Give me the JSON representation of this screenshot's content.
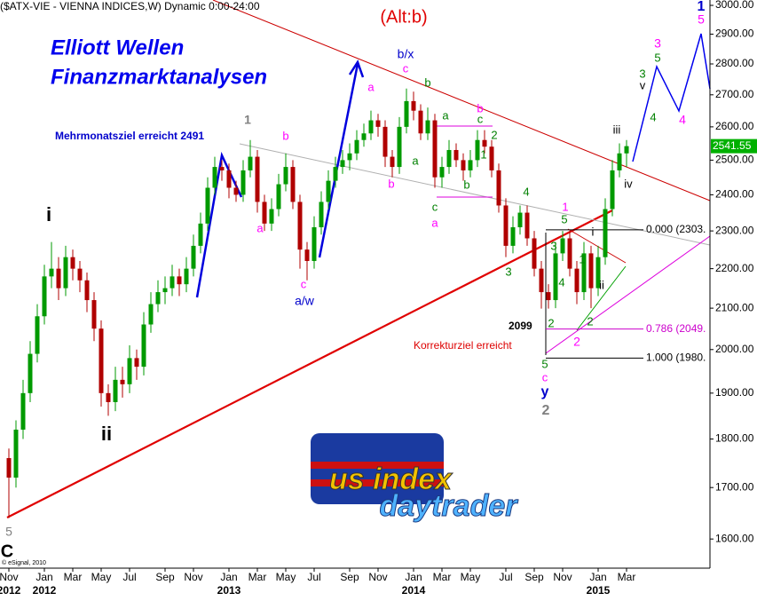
{
  "chart_data": {
    "type": "candlestick",
    "title": "($ATX-VIE - VIENNA INDICES,W) Dynamic 0:00-24:00",
    "subtitle": "(Alt:b)",
    "brand": [
      "Elliott Wellen",
      "Finanzmarktanalysen"
    ],
    "copyright": "© eSignal, 2010",
    "logo": [
      "us index",
      "daytrader"
    ],
    "log_scale": true,
    "ylim": [
      1546,
      3019
    ],
    "yticks": [
      {
        "value": 1600,
        "label": "1600.00"
      },
      {
        "value": 1700,
        "label": "1700.00"
      },
      {
        "value": 1800,
        "label": "1800.00"
      },
      {
        "value": 1900,
        "label": "1900.00"
      },
      {
        "value": 2000,
        "label": "2000.00"
      },
      {
        "value": 2100,
        "label": "2100.00"
      },
      {
        "value": 2200,
        "label": "2200.00"
      },
      {
        "value": 2300,
        "label": "2300.00"
      },
      {
        "value": 2400,
        "label": "2400.00"
      },
      {
        "value": 2500,
        "label": "2500.00"
      },
      {
        "value": 2600,
        "label": "2600.00"
      },
      {
        "value": 2700,
        "label": "2700.00"
      },
      {
        "value": 2800,
        "label": "2800.00"
      },
      {
        "value": 2900,
        "label": "2900.00"
      },
      {
        "value": 3000,
        "label": "3000.00"
      }
    ],
    "up_color": "#009a00",
    "down_color": "#b00000",
    "last_color": "#00b000",
    "categories": [
      "Nov\n2012",
      null,
      null,
      null,
      null,
      "Jan\n2012",
      null,
      null,
      null,
      "Mar",
      null,
      null,
      null,
      "May",
      null,
      null,
      null,
      "Jul",
      null,
      null,
      null,
      null,
      "Sep",
      null,
      null,
      null,
      "Nov",
      null,
      null,
      null,
      null,
      "Jan\n2013",
      null,
      null,
      null,
      "Mar",
      null,
      null,
      null,
      "May",
      null,
      null,
      null,
      "Jul",
      null,
      null,
      null,
      null,
      "Sep",
      null,
      null,
      null,
      "Nov",
      null,
      null,
      null,
      null,
      "Jan\n2014",
      null,
      null,
      null,
      "Mar",
      null,
      null,
      null,
      "May",
      null,
      null,
      null,
      null,
      "Jul",
      null,
      null,
      null,
      "Sep",
      null,
      null,
      null,
      "Nov",
      null,
      null,
      null,
      null,
      "Jan\n2015",
      null,
      null,
      null,
      "Mar"
    ],
    "series": [
      {
        "name": "$ATX-VIE",
        "values": [
          [
            1760,
            1780,
            1640,
            1720
          ],
          [
            1720,
            1840,
            1700,
            1820
          ],
          [
            1820,
            1930,
            1800,
            1900
          ],
          [
            1900,
            2020,
            1880,
            1990
          ],
          [
            1990,
            2110,
            1970,
            2080
          ],
          [
            2080,
            2210,
            2060,
            2180
          ],
          [
            2180,
            2270,
            2150,
            2200
          ],
          [
            2200,
            2230,
            2120,
            2150
          ],
          [
            2150,
            2260,
            2130,
            2230
          ],
          [
            2230,
            2250,
            2170,
            2200
          ],
          [
            2200,
            2220,
            2140,
            2170
          ],
          [
            2170,
            2190,
            2090,
            2120
          ],
          [
            2120,
            2140,
            2020,
            2050
          ],
          [
            2050,
            2070,
            1870,
            1900
          ],
          [
            1900,
            1920,
            1850,
            1880
          ],
          [
            1880,
            1960,
            1860,
            1930
          ],
          [
            1930,
            1960,
            1890,
            1920
          ],
          [
            1920,
            2010,
            1900,
            1980
          ],
          [
            1980,
            2000,
            1930,
            1960
          ],
          [
            1960,
            2090,
            1940,
            2060
          ],
          [
            2060,
            2140,
            2040,
            2110
          ],
          [
            2110,
            2170,
            2090,
            2140
          ],
          [
            2140,
            2180,
            2110,
            2150
          ],
          [
            2150,
            2210,
            2130,
            2180
          ],
          [
            2180,
            2200,
            2130,
            2160
          ],
          [
            2160,
            2230,
            2140,
            2200
          ],
          [
            2200,
            2290,
            2180,
            2260
          ],
          [
            2260,
            2350,
            2240,
            2320
          ],
          [
            2320,
            2450,
            2300,
            2420
          ],
          [
            2420,
            2510,
            2400,
            2480
          ],
          [
            2480,
            2500,
            2440,
            2470
          ],
          [
            2470,
            2490,
            2390,
            2420
          ],
          [
            2420,
            2440,
            2380,
            2400
          ],
          [
            2400,
            2500,
            2380,
            2470
          ],
          [
            2470,
            2560,
            2450,
            2510
          ],
          [
            2510,
            2530,
            2350,
            2380
          ],
          [
            2380,
            2400,
            2300,
            2320
          ],
          [
            2320,
            2390,
            2300,
            2360
          ],
          [
            2360,
            2460,
            2340,
            2430
          ],
          [
            2430,
            2520,
            2410,
            2480
          ],
          [
            2480,
            2500,
            2360,
            2380
          ],
          [
            2380,
            2400,
            2200,
            2250
          ],
          [
            2250,
            2270,
            2170,
            2220
          ],
          [
            2220,
            2340,
            2200,
            2310
          ],
          [
            2310,
            2410,
            2290,
            2380
          ],
          [
            2380,
            2470,
            2360,
            2440
          ],
          [
            2440,
            2510,
            2420,
            2480
          ],
          [
            2480,
            2530,
            2460,
            2500
          ],
          [
            2500,
            2550,
            2470,
            2520
          ],
          [
            2520,
            2590,
            2500,
            2560
          ],
          [
            2560,
            2610,
            2540,
            2580
          ],
          [
            2580,
            2650,
            2560,
            2620
          ],
          [
            2620,
            2640,
            2570,
            2600
          ],
          [
            2600,
            2620,
            2480,
            2510
          ],
          [
            2510,
            2530,
            2450,
            2480
          ],
          [
            2480,
            2630,
            2460,
            2600
          ],
          [
            2600,
            2720,
            2580,
            2680
          ],
          [
            2680,
            2710,
            2620,
            2650
          ],
          [
            2650,
            2670,
            2560,
            2580
          ],
          [
            2580,
            2660,
            2560,
            2620
          ],
          [
            2620,
            2640,
            2420,
            2450
          ],
          [
            2450,
            2510,
            2420,
            2480
          ],
          [
            2480,
            2560,
            2460,
            2530
          ],
          [
            2530,
            2550,
            2480,
            2500
          ],
          [
            2500,
            2520,
            2440,
            2470
          ],
          [
            2470,
            2530,
            2450,
            2500
          ],
          [
            2500,
            2590,
            2480,
            2560
          ],
          [
            2560,
            2590,
            2520,
            2540
          ],
          [
            2540,
            2560,
            2450,
            2470
          ],
          [
            2470,
            2490,
            2350,
            2370
          ],
          [
            2370,
            2390,
            2230,
            2260
          ],
          [
            2260,
            2340,
            2240,
            2310
          ],
          [
            2310,
            2370,
            2290,
            2350
          ],
          [
            2350,
            2370,
            2260,
            2280
          ],
          [
            2280,
            2300,
            2180,
            2200
          ],
          [
            2200,
            2220,
            2099,
            2140
          ],
          [
            2140,
            2160,
            2099,
            2120
          ],
          [
            2120,
            2270,
            2100,
            2240
          ],
          [
            2240,
            2300,
            2220,
            2280
          ],
          [
            2280,
            2300,
            2180,
            2200
          ],
          [
            2200,
            2220,
            2110,
            2140
          ],
          [
            2140,
            2270,
            2120,
            2240
          ],
          [
            2240,
            2260,
            2100,
            2150
          ],
          [
            2150,
            2260,
            2130,
            2230
          ],
          [
            2230,
            2390,
            2210,
            2360
          ],
          [
            2360,
            2500,
            2340,
            2470
          ],
          [
            2470,
            2550,
            2450,
            2520
          ],
          [
            2520,
            2560,
            2480,
            2541.55
          ]
        ]
      }
    ],
    "fib_levels": [
      {
        "value": 2303,
        "label": "0.000 (2303.",
        "color": "#000000"
      },
      {
        "value": 2049,
        "label": "0.786 (2049.",
        "color": "#cc00cc"
      },
      {
        "value": 1980,
        "label": "1.000 (1980.",
        "color": "#000000"
      }
    ],
    "annotations": [
      {
        "text": "i",
        "color": "#000000"
      },
      {
        "text": "ii",
        "color": "#000000"
      },
      {
        "text": "C",
        "color": "#000000"
      },
      {
        "text": "5",
        "color": "#808080"
      },
      {
        "text": "1",
        "color": "#808080"
      },
      {
        "text": "2",
        "color": "#808080"
      },
      {
        "text": "b",
        "color": "#ff00ff"
      },
      {
        "text": "a",
        "color": "#ff00ff"
      },
      {
        "text": "c",
        "color": "#ff00ff"
      },
      {
        "text": "a/w",
        "color": "#0000cc"
      },
      {
        "text": "a",
        "color": "#ff00ff"
      },
      {
        "text": "b",
        "color": "#ff00ff"
      },
      {
        "text": "c",
        "color": "#ff00ff"
      },
      {
        "text": "b/x",
        "color": "#0000cc"
      },
      {
        "text": "b",
        "color": "#008000"
      },
      {
        "text": "a",
        "color": "#008000"
      },
      {
        "text": "a",
        "color": "#008000"
      },
      {
        "text": "b",
        "color": "#ff00ff"
      },
      {
        "text": "c",
        "color": "#008000"
      },
      {
        "text": "2",
        "color": "#008000"
      },
      {
        "text": "1",
        "color": "#008000"
      },
      {
        "text": "c",
        "color": "#008000"
      },
      {
        "text": "a",
        "color": "#ff00ff"
      },
      {
        "text": "b",
        "color": "#008000"
      },
      {
        "text": "4",
        "color": "#008000"
      },
      {
        "text": "3",
        "color": "#008000"
      },
      {
        "text": "1",
        "color": "#ff00ff"
      },
      {
        "text": "5",
        "color": "#008000"
      },
      {
        "text": "3",
        "color": "#008000"
      },
      {
        "text": "4",
        "color": "#008000"
      },
      {
        "text": "2",
        "color": "#008000"
      },
      {
        "text": "1",
        "color": "#008000"
      },
      {
        "text": "2",
        "color": "#008000"
      },
      {
        "text": "2",
        "color": "#ff00ff"
      },
      {
        "text": "i",
        "color": "#000000"
      },
      {
        "text": "ii",
        "color": "#000000"
      },
      {
        "text": "iii",
        "color": "#000000"
      },
      {
        "text": "iv",
        "color": "#000000"
      },
      {
        "text": "v",
        "color": "#000000"
      },
      {
        "text": "3",
        "color": "#008000"
      },
      {
        "text": "5",
        "color": "#008000"
      },
      {
        "text": "3",
        "color": "#ff00ff"
      },
      {
        "text": "4",
        "color": "#008000"
      },
      {
        "text": "4",
        "color": "#ff00ff"
      },
      {
        "text": "1",
        "color": "#0000cc"
      },
      {
        "text": "5",
        "color": "#ff00ff"
      },
      {
        "text": "5",
        "color": "#008000"
      },
      {
        "text": "c",
        "color": "#ff00ff"
      },
      {
        "text": "y",
        "color": "#0000cc"
      },
      {
        "text": "Mehrmonatsziel erreicht 2491",
        "color": "#0000cc"
      },
      {
        "text": "2099",
        "color": "#000000"
      },
      {
        "text": "Korrekturziel erreicht",
        "color": "#dd0000"
      }
    ]
  }
}
